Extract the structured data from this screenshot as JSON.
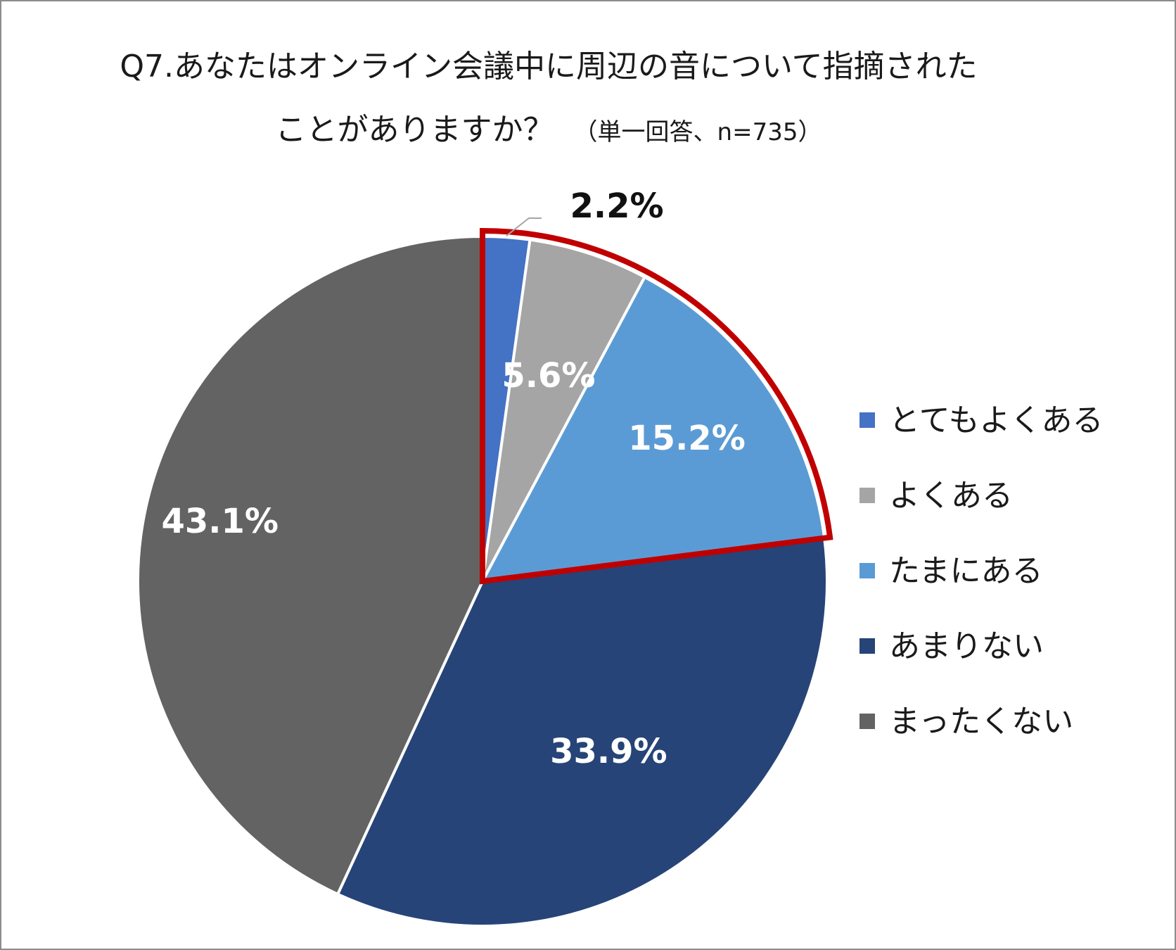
{
  "chart_data": {
    "type": "pie",
    "title_line1": "Q7.あなたはオンライン会議中に周辺の音について指摘された",
    "title_line2": "ことがありますか？",
    "title_note": "（単一回答、n=735）",
    "slices": [
      {
        "name": "とてもよくある",
        "value": 2.2,
        "label": "2.2%",
        "color": "#4472c4",
        "highlighted": true
      },
      {
        "name": "よくある",
        "value": 5.6,
        "label": "5.6%",
        "color": "#a5a5a5",
        "highlighted": true
      },
      {
        "name": "たまにある",
        "value": 15.2,
        "label": "15.2%",
        "color": "#5b9bd5",
        "highlighted": true
      },
      {
        "name": "あまりない",
        "value": 33.9,
        "label": "33.9%",
        "color": "#264478",
        "highlighted": false
      },
      {
        "name": "まったくない",
        "value": 43.1,
        "label": "43.1%",
        "color": "#636363",
        "highlighted": false
      }
    ],
    "start_angle": "12 o'clock",
    "direction": "clockwise",
    "highlight_color": "#c00000",
    "legend_position": "right"
  }
}
